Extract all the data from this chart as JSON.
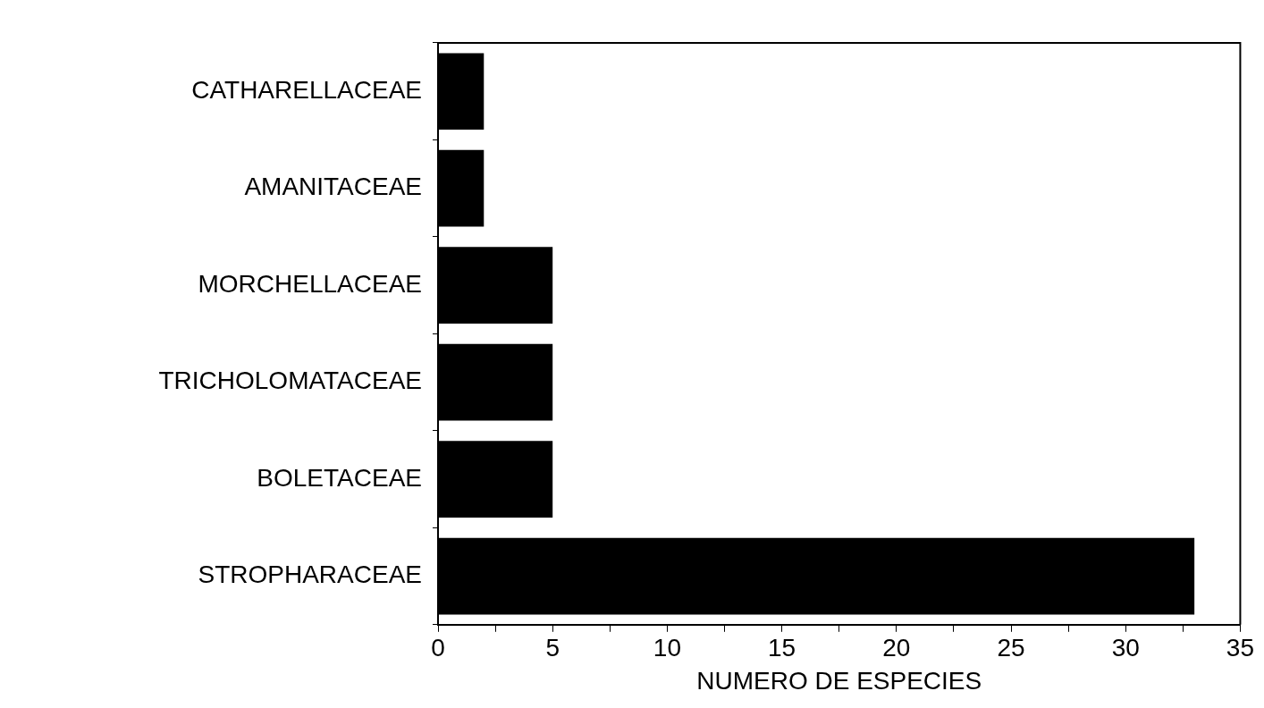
{
  "chart_data": {
    "type": "bar",
    "orientation": "horizontal",
    "xlabel": "NUMERO DE ESPECIES",
    "categories": [
      "CATHARELLACEAE",
      "AMANITACEAE",
      "MORCHELLACEAE",
      "TRICHOLOMATACEAE",
      "BOLETACEAE",
      "STROPHARACEAE"
    ],
    "values": [
      2,
      2,
      5,
      5,
      5,
      33
    ],
    "color": "#000000",
    "xlim": [
      0,
      35
    ],
    "xticks": [
      0,
      {
        "value": 2.5,
        "label": null
      },
      5,
      {
        "value": 7.5,
        "label": null
      },
      10,
      {
        "value": 12.5,
        "label": null
      },
      15,
      {
        "value": 17.5,
        "label": null
      },
      20,
      {
        "value": 22.5,
        "label": null
      },
      25,
      {
        "value": 27.5,
        "label": null
      },
      30,
      {
        "value": 32.5,
        "label": null
      },
      35
    ],
    "grid": false,
    "legend": false
  }
}
